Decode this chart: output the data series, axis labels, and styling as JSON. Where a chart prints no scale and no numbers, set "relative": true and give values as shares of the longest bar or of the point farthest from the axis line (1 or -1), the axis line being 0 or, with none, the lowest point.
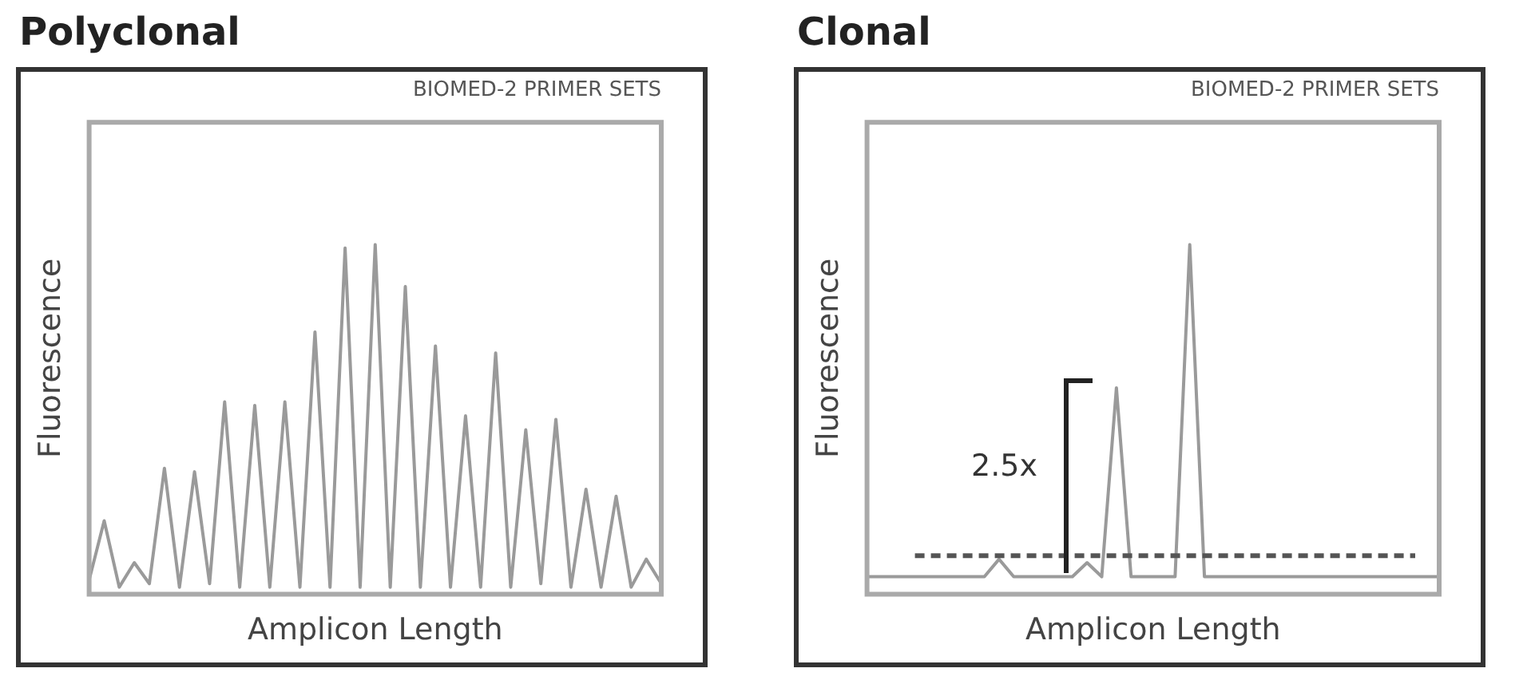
{
  "chart_data": [
    {
      "type": "line",
      "title": "Polyclonal",
      "subtitle": "BIOMED-2 PRIMER SETS",
      "xlabel": "Amplicon Length",
      "ylabel": "Fluorescence",
      "relative": true,
      "marker": "none",
      "categories": [
        null,
        null,
        null,
        null,
        null,
        null,
        null,
        null,
        null,
        null,
        null,
        null,
        null,
        null,
        null,
        null,
        null,
        null,
        null,
        null,
        null,
        null,
        null,
        null,
        null,
        null,
        null,
        null,
        null,
        null,
        null,
        null,
        null,
        null,
        null,
        null,
        null,
        null,
        null
      ],
      "series": [
        {
          "color": "#9a9a9a",
          "values": [
            0.04,
            0.21,
            0.02,
            0.09,
            0.03,
            0.36,
            0.02,
            0.35,
            0.03,
            0.55,
            0.02,
            0.54,
            0.02,
            0.55,
            0.02,
            0.75,
            0.02,
            0.99,
            0.02,
            1,
            0.02,
            0.88,
            0.02,
            0.71,
            0.02,
            0.51,
            0.02,
            0.69,
            0.02,
            0.47,
            0.03,
            0.5,
            0.02,
            0.3,
            0.02,
            0.28,
            0.02,
            0.1,
            0.03
          ]
        }
      ]
    },
    {
      "type": "line",
      "title": "Clonal",
      "subtitle": "BIOMED-2 PRIMER SETS",
      "xlabel": "Amplicon Length",
      "ylabel": "Fluorescence",
      "relative": true,
      "marker": "none",
      "categories": [
        null,
        null,
        null,
        null,
        null,
        null,
        null,
        null,
        null,
        null,
        null,
        null,
        null,
        null,
        null,
        null,
        null,
        null,
        null,
        null,
        null,
        null,
        null,
        null,
        null,
        null,
        null,
        null,
        null,
        null,
        null,
        null,
        null,
        null,
        null,
        null,
        null,
        null,
        null,
        null
      ],
      "series": [
        {
          "color": "#9a9a9a",
          "values": [
            0.05,
            0.05,
            0.05,
            0.05,
            0.05,
            0.05,
            0.05,
            0.05,
            0.05,
            0.1,
            0.05,
            0.05,
            0.05,
            0.05,
            0.05,
            0.09,
            0.05,
            0.59,
            0.05,
            0.05,
            0.05,
            0.05,
            1,
            0.05,
            0.05,
            0.05,
            0.05,
            0.05,
            0.05,
            0.05,
            0.05,
            0.05,
            0.05,
            0.05,
            0.05,
            0.05,
            0.05,
            0.05,
            0.05,
            0.05
          ]
        }
      ],
      "ref_lines": [
        {
          "axis": "y",
          "value": 0.11,
          "color": "#555555",
          "line_style": "dashed"
        }
      ],
      "annotations": [
        "2.5x"
      ]
    }
  ]
}
